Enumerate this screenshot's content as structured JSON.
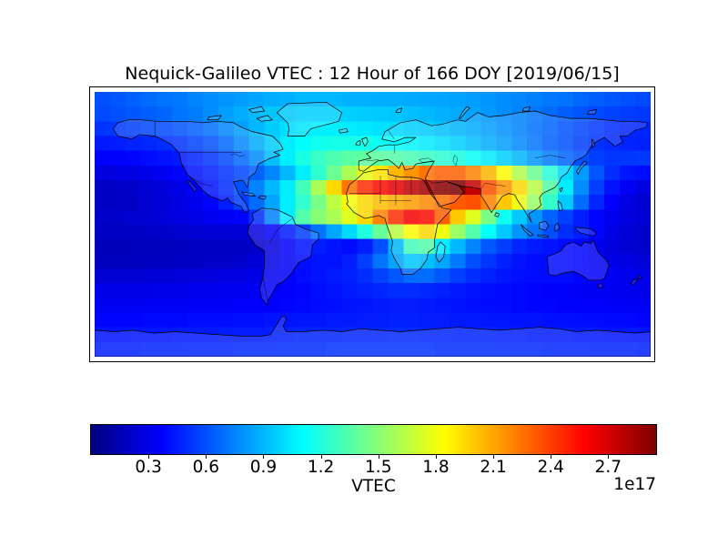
{
  "chart_data": {
    "type": "heatmap",
    "title": "Nequick-Galileo VTEC : 12 Hour of 166 DOY [2019/06/15]",
    "model": "Nequick-Galileo",
    "quantity": "VTEC",
    "hour": 12,
    "doy": 166,
    "date": "2019/06/15",
    "projection": "equirectangular world map",
    "lon_range": [
      -180,
      180
    ],
    "lat_range": [
      -90,
      90
    ],
    "grid_cols": 36,
    "grid_rows": 18,
    "colormap": "jet",
    "vmin": 0,
    "vmax": 2.95,
    "value_scale": "1e17",
    "colorbar": {
      "label": "VTEC",
      "offset_label": "1e17",
      "ticks": [
        0.3,
        0.6,
        0.9,
        1.2,
        1.5,
        1.8,
        2.1,
        2.4,
        2.7
      ]
    },
    "grid": [
      [
        0.6,
        0.62,
        0.65,
        0.68,
        0.7,
        0.72,
        0.75,
        0.78,
        0.8,
        0.82,
        0.85,
        0.87,
        0.88,
        0.9,
        0.9,
        0.9,
        0.88,
        0.88,
        0.87,
        0.87,
        0.86,
        0.85,
        0.85,
        0.84,
        0.82,
        0.8,
        0.78,
        0.76,
        0.74,
        0.72,
        0.7,
        0.67,
        0.64,
        0.62,
        0.6,
        0.58
      ],
      [
        0.58,
        0.6,
        0.62,
        0.64,
        0.66,
        0.7,
        0.73,
        0.78,
        0.83,
        0.87,
        0.91,
        0.94,
        0.96,
        0.98,
        0.98,
        0.98,
        0.97,
        0.96,
        0.95,
        0.94,
        0.92,
        0.9,
        0.88,
        0.86,
        0.84,
        0.81,
        0.78,
        0.75,
        0.71,
        0.68,
        0.64,
        0.61,
        0.58,
        0.56,
        0.54,
        0.53
      ],
      [
        0.52,
        0.53,
        0.55,
        0.57,
        0.59,
        0.61,
        0.65,
        0.7,
        0.76,
        0.83,
        0.9,
        0.96,
        1.01,
        1.04,
        1.06,
        1.06,
        1.05,
        1.04,
        1.02,
        1.0,
        0.98,
        0.96,
        0.93,
        0.9,
        0.87,
        0.83,
        0.79,
        0.75,
        0.7,
        0.66,
        0.61,
        0.57,
        0.53,
        0.5,
        0.48,
        0.47
      ],
      [
        0.44,
        0.45,
        0.47,
        0.48,
        0.5,
        0.52,
        0.56,
        0.61,
        0.68,
        0.77,
        0.87,
        0.97,
        1.05,
        1.11,
        1.15,
        1.17,
        1.17,
        1.16,
        1.14,
        1.12,
        1.09,
        1.06,
        1.02,
        0.98,
        0.93,
        0.88,
        0.83,
        0.77,
        0.71,
        0.65,
        0.6,
        0.55,
        0.51,
        0.49,
        0.47,
        0.46
      ],
      [
        0.36,
        0.37,
        0.38,
        0.4,
        0.42,
        0.44,
        0.47,
        0.52,
        0.58,
        0.67,
        0.78,
        0.92,
        1.06,
        1.18,
        1.27,
        1.33,
        1.37,
        1.38,
        1.37,
        1.35,
        1.32,
        1.28,
        1.24,
        1.19,
        1.13,
        1.06,
        0.98,
        0.9,
        0.81,
        0.73,
        0.66,
        0.6,
        0.55,
        0.52,
        0.52,
        0.53
      ],
      [
        0.27,
        0.28,
        0.29,
        0.31,
        0.34,
        0.38,
        0.42,
        0.46,
        0.51,
        0.57,
        0.65,
        0.76,
        0.9,
        1.06,
        1.24,
        1.42,
        1.6,
        1.78,
        1.92,
        2.05,
        2.15,
        2.25,
        2.3,
        2.3,
        2.2,
        2.05,
        1.85,
        1.62,
        1.42,
        1.22,
        1.0,
        0.82,
        0.62,
        0.5,
        0.43,
        0.4
      ],
      [
        0.2,
        0.21,
        0.22,
        0.24,
        0.27,
        0.3,
        0.35,
        0.42,
        0.5,
        0.6,
        0.75,
        0.9,
        1.05,
        1.3,
        1.6,
        1.95,
        2.25,
        2.45,
        2.55,
        2.65,
        2.75,
        2.85,
        2.92,
        2.95,
        2.75,
        2.35,
        2.15,
        1.95,
        1.65,
        1.35,
        1.05,
        0.78,
        0.55,
        0.42,
        0.34,
        0.28
      ],
      [
        0.2,
        0.2,
        0.21,
        0.23,
        0.25,
        0.28,
        0.32,
        0.38,
        0.45,
        0.55,
        0.68,
        0.85,
        1.05,
        1.25,
        1.45,
        1.65,
        1.82,
        1.95,
        2.02,
        2.08,
        2.12,
        2.18,
        2.25,
        2.32,
        2.35,
        2.2,
        2.0,
        1.8,
        1.55,
        1.25,
        0.95,
        0.68,
        0.48,
        0.36,
        0.28,
        0.24
      ],
      [
        0.22,
        0.22,
        0.23,
        0.24,
        0.26,
        0.28,
        0.3,
        0.33,
        0.35,
        0.38,
        0.5,
        0.75,
        1.05,
        1.35,
        1.5,
        1.6,
        1.75,
        1.95,
        2.2,
        2.45,
        2.6,
        2.55,
        2.3,
        2.0,
        1.75,
        1.45,
        1.15,
        0.95,
        0.8,
        0.65,
        0.55,
        0.45,
        0.38,
        0.32,
        0.28,
        0.25
      ],
      [
        0.2,
        0.2,
        0.2,
        0.21,
        0.22,
        0.23,
        0.24,
        0.25,
        0.25,
        0.25,
        0.28,
        0.35,
        0.45,
        0.55,
        0.7,
        0.85,
        1.0,
        1.2,
        1.4,
        1.65,
        1.85,
        1.95,
        1.8,
        1.55,
        1.35,
        1.12,
        0.95,
        0.8,
        0.7,
        0.6,
        0.5,
        0.45,
        0.38,
        0.3,
        0.25,
        0.22
      ],
      [
        0.17,
        0.17,
        0.17,
        0.18,
        0.18,
        0.19,
        0.2,
        0.2,
        0.2,
        0.2,
        0.22,
        0.28,
        0.35,
        0.42,
        0.45,
        0.42,
        0.4,
        0.45,
        0.6,
        0.9,
        1.3,
        1.35,
        1.05,
        0.9,
        0.75,
        0.62,
        0.55,
        0.48,
        0.44,
        0.42,
        0.4,
        0.38,
        0.32,
        0.27,
        0.24,
        0.22
      ],
      [
        0.18,
        0.18,
        0.18,
        0.19,
        0.19,
        0.2,
        0.2,
        0.21,
        0.21,
        0.22,
        0.25,
        0.3,
        0.35,
        0.4,
        0.42,
        0.42,
        0.45,
        0.55,
        0.7,
        0.85,
        0.95,
        0.92,
        0.85,
        0.72,
        0.6,
        0.52,
        0.46,
        0.42,
        0.4,
        0.4,
        0.4,
        0.38,
        0.34,
        0.3,
        0.28,
        0.26
      ],
      [
        0.24,
        0.24,
        0.24,
        0.25,
        0.25,
        0.26,
        0.26,
        0.27,
        0.28,
        0.28,
        0.3,
        0.33,
        0.36,
        0.4,
        0.42,
        0.44,
        0.46,
        0.5,
        0.56,
        0.62,
        0.68,
        0.68,
        0.62,
        0.55,
        0.5,
        0.46,
        0.43,
        0.41,
        0.4,
        0.4,
        0.4,
        0.38,
        0.36,
        0.34,
        0.32,
        0.3
      ],
      [
        0.3,
        0.3,
        0.3,
        0.3,
        0.31,
        0.31,
        0.32,
        0.32,
        0.33,
        0.33,
        0.34,
        0.35,
        0.36,
        0.38,
        0.4,
        0.42,
        0.44,
        0.46,
        0.48,
        0.5,
        0.5,
        0.48,
        0.46,
        0.44,
        0.42,
        0.41,
        0.4,
        0.39,
        0.38,
        0.37,
        0.36,
        0.35,
        0.34,
        0.33,
        0.32,
        0.31
      ],
      [
        0.33,
        0.33,
        0.33,
        0.34,
        0.34,
        0.34,
        0.35,
        0.35,
        0.35,
        0.36,
        0.36,
        0.37,
        0.38,
        0.39,
        0.4,
        0.41,
        0.42,
        0.43,
        0.44,
        0.45,
        0.45,
        0.44,
        0.43,
        0.42,
        0.41,
        0.4,
        0.4,
        0.39,
        0.38,
        0.38,
        0.37,
        0.36,
        0.36,
        0.35,
        0.34,
        0.34
      ],
      [
        0.38,
        0.38,
        0.38,
        0.39,
        0.39,
        0.39,
        0.4,
        0.4,
        0.4,
        0.41,
        0.41,
        0.42,
        0.42,
        0.43,
        0.43,
        0.44,
        0.44,
        0.45,
        0.45,
        0.46,
        0.46,
        0.45,
        0.45,
        0.44,
        0.44,
        0.43,
        0.43,
        0.42,
        0.42,
        0.41,
        0.41,
        0.4,
        0.4,
        0.39,
        0.39,
        0.38
      ],
      [
        0.42,
        0.42,
        0.43,
        0.43,
        0.43,
        0.44,
        0.44,
        0.44,
        0.45,
        0.45,
        0.45,
        0.46,
        0.46,
        0.47,
        0.47,
        0.47,
        0.48,
        0.48,
        0.48,
        0.49,
        0.49,
        0.48,
        0.48,
        0.47,
        0.47,
        0.47,
        0.46,
        0.46,
        0.45,
        0.45,
        0.45,
        0.44,
        0.44,
        0.43,
        0.43,
        0.42
      ],
      [
        0.46,
        0.46,
        0.46,
        0.47,
        0.47,
        0.47,
        0.48,
        0.48,
        0.48,
        0.49,
        0.49,
        0.49,
        0.5,
        0.5,
        0.5,
        0.51,
        0.51,
        0.51,
        0.51,
        0.51,
        0.51,
        0.51,
        0.5,
        0.5,
        0.5,
        0.5,
        0.49,
        0.49,
        0.49,
        0.48,
        0.48,
        0.48,
        0.47,
        0.47,
        0.47,
        0.46
      ]
    ]
  }
}
